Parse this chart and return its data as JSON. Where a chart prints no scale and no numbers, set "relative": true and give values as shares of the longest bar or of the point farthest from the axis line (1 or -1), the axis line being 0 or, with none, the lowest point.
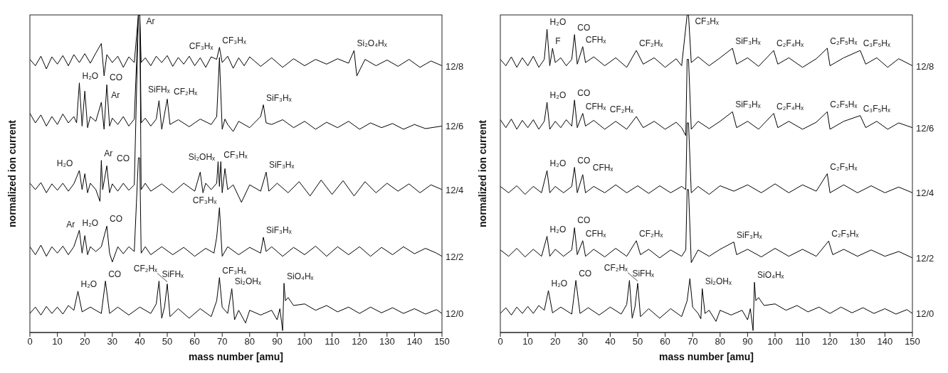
{
  "chart_data": [
    {
      "type": "line",
      "relative": true,
      "xlabel": "mass number [amu]",
      "ylabel": "normalized ion current",
      "xlim": [
        0,
        150
      ],
      "xticks": [
        0,
        10,
        20,
        30,
        40,
        50,
        60,
        70,
        80,
        90,
        100,
        110,
        120,
        130,
        140,
        150
      ],
      "series": [
        {
          "name": "12/8",
          "color": "#000000",
          "x": [
            0,
            2,
            4,
            6,
            8,
            10,
            12,
            14,
            16,
            18,
            20,
            22,
            24,
            26,
            27,
            28,
            30,
            32,
            34,
            36,
            38,
            39.5,
            40,
            40.5,
            42,
            44,
            46,
            48,
            50,
            52,
            54,
            56,
            58,
            60,
            62,
            64,
            66,
            68,
            69,
            70,
            72,
            74,
            76,
            78,
            80,
            84,
            88,
            92,
            96,
            100,
            104,
            108,
            112,
            116,
            118,
            119,
            122,
            126,
            130,
            134,
            138,
            142,
            146,
            150
          ],
          "values": [
            0.86,
            0.84,
            0.87,
            0.83,
            0.868,
            0.845,
            0.872,
            0.84,
            0.875,
            0.85,
            0.878,
            0.848,
            0.88,
            0.91,
            0.808,
            0.875,
            0.85,
            0.87,
            0.835,
            0.868,
            0.85,
            1.0,
            1.0,
            0.85,
            0.865,
            0.84,
            0.87,
            0.85,
            0.872,
            0.838,
            0.866,
            0.845,
            0.87,
            0.84,
            0.865,
            0.835,
            0.868,
            0.86,
            0.898,
            0.85,
            0.87,
            0.832,
            0.865,
            0.84,
            0.868,
            0.838,
            0.865,
            0.835,
            0.862,
            0.84,
            0.86,
            0.845,
            0.862,
            0.848,
            0.888,
            0.808,
            0.86,
            0.84,
            0.858,
            0.838,
            0.86,
            0.835,
            0.855,
            0.84
          ]
        },
        {
          "name": "12/6",
          "color": "#000000",
          "x": [
            0,
            2,
            4,
            6,
            8,
            10,
            12,
            14,
            16,
            17,
            18,
            19,
            20,
            21,
            22,
            24,
            26,
            27,
            28,
            29,
            30,
            32,
            34,
            36,
            38,
            39.5,
            40,
            40.5,
            42,
            44,
            46,
            47,
            48,
            50,
            51,
            54,
            58,
            62,
            66,
            68,
            69,
            70,
            71,
            72,
            74,
            76,
            80,
            84,
            85,
            86,
            88,
            92,
            96,
            100,
            104,
            108,
            112,
            116,
            120,
            124,
            128,
            132,
            136,
            140,
            144,
            150
          ],
          "values": [
            0.69,
            0.66,
            0.685,
            0.65,
            0.68,
            0.655,
            0.688,
            0.66,
            0.68,
            0.66,
            0.786,
            0.65,
            0.76,
            0.645,
            0.68,
            0.665,
            0.725,
            0.64,
            0.78,
            0.65,
            0.675,
            0.655,
            0.68,
            0.65,
            0.672,
            1.0,
            1.0,
            0.66,
            0.675,
            0.65,
            0.672,
            0.73,
            0.64,
            0.735,
            0.655,
            0.67,
            0.648,
            0.672,
            0.655,
            0.68,
            0.866,
            0.64,
            0.672,
            0.655,
            0.633,
            0.665,
            0.645,
            0.68,
            0.717,
            0.66,
            0.655,
            0.67,
            0.645,
            0.665,
            0.64,
            0.662,
            0.645,
            0.665,
            0.64,
            0.66,
            0.645,
            0.658,
            0.64,
            0.655,
            0.642,
            0.65
          ]
        },
        {
          "name": "12/4",
          "color": "#000000",
          "x": [
            0,
            2,
            4,
            6,
            8,
            10,
            12,
            14,
            16,
            18,
            19,
            20,
            21,
            22,
            24,
            25.5,
            26,
            26.5,
            28,
            29,
            30,
            32,
            34,
            36,
            38,
            39.5,
            40,
            40.5,
            42,
            44,
            48,
            52,
            56,
            60,
            62,
            63,
            64,
            66,
            68,
            68.5,
            69,
            69.5,
            70,
            71,
            72,
            74,
            77,
            80,
            84,
            86,
            87,
            90,
            94,
            98,
            102,
            106,
            110,
            114,
            118,
            122,
            126,
            130,
            134,
            138,
            142,
            146,
            150
          ],
          "values": [
            0.47,
            0.45,
            0.472,
            0.44,
            0.468,
            0.448,
            0.47,
            0.445,
            0.468,
            0.51,
            0.45,
            0.5,
            0.44,
            0.47,
            0.45,
            0.413,
            0.542,
            0.45,
            0.525,
            0.44,
            0.468,
            0.445,
            0.47,
            0.448,
            0.465,
            1.0,
            1.0,
            0.45,
            0.47,
            0.445,
            0.468,
            0.44,
            0.47,
            0.445,
            0.505,
            0.44,
            0.47,
            0.45,
            0.47,
            0.538,
            0.46,
            0.538,
            0.44,
            0.516,
            0.45,
            0.465,
            0.41,
            0.465,
            0.445,
            0.505,
            0.445,
            0.47,
            0.44,
            0.475,
            0.43,
            0.48,
            0.435,
            0.478,
            0.43,
            0.475,
            0.44,
            0.47,
            0.445,
            0.468,
            0.44,
            0.465,
            0.45
          ]
        },
        {
          "name": "12/2",
          "color": "#000000",
          "x": [
            0,
            2,
            4,
            6,
            8,
            10,
            12,
            14,
            16,
            18,
            19,
            20,
            21,
            22,
            24,
            26,
            28,
            29,
            30,
            32,
            34,
            36,
            38,
            39.5,
            40,
            40.5,
            42,
            44,
            48,
            52,
            56,
            60,
            64,
            67,
            68,
            69,
            70,
            72,
            76,
            80,
            84,
            85,
            86,
            88,
            92,
            96,
            100,
            104,
            108,
            112,
            116,
            120,
            124,
            128,
            132,
            136,
            140,
            144,
            148,
            150
          ],
          "values": [
            0.27,
            0.245,
            0.275,
            0.24,
            0.27,
            0.25,
            0.272,
            0.245,
            0.27,
            0.322,
            0.25,
            0.305,
            0.245,
            0.27,
            0.255,
            0.27,
            0.335,
            0.25,
            0.222,
            0.27,
            0.248,
            0.27,
            0.255,
            0.55,
            0.55,
            0.25,
            0.27,
            0.245,
            0.27,
            0.245,
            0.268,
            0.24,
            0.265,
            0.25,
            0.3,
            0.393,
            0.24,
            0.27,
            0.245,
            0.268,
            0.25,
            0.3,
            0.255,
            0.27,
            0.24,
            0.268,
            0.245,
            0.272,
            0.24,
            0.27,
            0.245,
            0.27,
            0.24,
            0.268,
            0.245,
            0.27,
            0.248,
            0.265,
            0.25,
            0.24
          ]
        },
        {
          "name": "12/0",
          "color": "#000000",
          "x": [
            0,
            2,
            4,
            6,
            8,
            10,
            12,
            14,
            16,
            17.5,
            19,
            22,
            26,
            27.5,
            29,
            32,
            36,
            40,
            44,
            46,
            47,
            48,
            49,
            50,
            51,
            54,
            58,
            62,
            66,
            68,
            69,
            70,
            72,
            73.5,
            74.5,
            76,
            78.5,
            80,
            84,
            88,
            90,
            91,
            92,
            92.5,
            93,
            94,
            96,
            100,
            104,
            108,
            112,
            116,
            120,
            124,
            128,
            132,
            136,
            140,
            144,
            148,
            150
          ],
          "values": [
            0.06,
            0.08,
            0.055,
            0.082,
            0.06,
            0.08,
            0.058,
            0.085,
            0.07,
            0.13,
            0.065,
            0.08,
            0.06,
            0.162,
            0.06,
            0.08,
            0.055,
            0.08,
            0.06,
            0.09,
            0.162,
            0.045,
            0.08,
            0.153,
            0.05,
            0.075,
            0.045,
            0.075,
            0.05,
            0.1,
            0.173,
            0.08,
            0.06,
            0.138,
            0.04,
            0.07,
            0.03,
            0.07,
            0.055,
            0.07,
            0.04,
            0.075,
            0.006,
            0.155,
            0.1,
            0.11,
            0.085,
            0.09,
            0.07,
            0.085,
            0.065,
            0.08,
            0.06,
            0.08,
            0.062,
            0.078,
            0.06,
            0.075,
            0.058,
            0.072,
            0.06
          ]
        }
      ],
      "annotations": [
        {
          "text": "Ar",
          "x": 40,
          "y": 1.0
        },
        {
          "text": "CF₃Hₓ",
          "x": 69,
          "y": 0.898
        },
        {
          "text": "Si₂O₄Hₓ",
          "x": 118,
          "y": 0.888
        },
        {
          "text": "H₂O",
          "x": 18,
          "y": 0.786
        },
        {
          "text": "Ar",
          "x": 26,
          "y": 0.725
        },
        {
          "text": "CO",
          "x": 28,
          "y": 0.78
        },
        {
          "text": "SiFHₓ",
          "x": 47,
          "y": 0.73
        },
        {
          "text": "CF₂Hₓ",
          "x": 50,
          "y": 0.735
        },
        {
          "text": "CF₃Hₓ",
          "x": 69,
          "y": 0.866
        },
        {
          "text": "SiF₃Hₓ",
          "x": 85,
          "y": 0.717
        },
        {
          "text": "H₂O",
          "x": 18,
          "y": 0.51
        },
        {
          "text": "Ar",
          "x": 26,
          "y": 0.542
        },
        {
          "text": "CO",
          "x": 28,
          "y": 0.525
        },
        {
          "text": "CF₃Hₓ",
          "x": 69.5,
          "y": 0.538
        },
        {
          "text": "Si₂OHₓ",
          "x": 71,
          "y": 0.516
        },
        {
          "text": "SiF₃Hₓ",
          "x": 86,
          "y": 0.505
        },
        {
          "text": "H₂O",
          "x": 18,
          "y": 0.322
        },
        {
          "text": "Ar",
          "x": 20,
          "y": 0.305
        },
        {
          "text": "CO",
          "x": 28,
          "y": 0.335
        },
        {
          "text": "CF₃Hₓ",
          "x": 69,
          "y": 0.393
        },
        {
          "text": "SiF₃Hₓ",
          "x": 85,
          "y": 0.3
        },
        {
          "text": "H₂O",
          "x": 17.5,
          "y": 0.13
        },
        {
          "text": "CO",
          "x": 27.5,
          "y": 0.162
        },
        {
          "text": "SiFHₓ",
          "x": 47,
          "y": 0.162
        },
        {
          "text": "CF₂Hₓ",
          "x": 50,
          "y": 0.153
        },
        {
          "text": "CF₃Hₓ",
          "x": 69,
          "y": 0.173
        },
        {
          "text": "Si₂OHₓ",
          "x": 73.5,
          "y": 0.138
        },
        {
          "text": "SiO₄Hₓ",
          "x": 92.5,
          "y": 0.155
        }
      ]
    },
    {
      "type": "line",
      "relative": true,
      "xlabel": "mass number [amu]",
      "ylabel": "normalized ion current",
      "xlim": [
        0,
        150
      ],
      "xticks": [
        0,
        10,
        20,
        30,
        40,
        50,
        60,
        70,
        80,
        90,
        100,
        110,
        120,
        130,
        140,
        150
      ],
      "series": [
        {
          "name": "12/8",
          "color": "#000000",
          "x": [
            0,
            2,
            4,
            6,
            8,
            10,
            12,
            14,
            16,
            17,
            18,
            19,
            20,
            22,
            24,
            26,
            27,
            28,
            30,
            31,
            34,
            38,
            42,
            46,
            49.5,
            52,
            56,
            60,
            64,
            66,
            67.5,
            68,
            68.5,
            69.5,
            72,
            76,
            80,
            84.5,
            86,
            90,
            94,
            99.5,
            101,
            105,
            110,
            115,
            119,
            120,
            125,
            131,
            133,
            137,
            141,
            145,
            150
          ],
          "values": [
            0.86,
            0.84,
            0.868,
            0.835,
            0.865,
            0.84,
            0.87,
            0.835,
            0.86,
            0.955,
            0.84,
            0.895,
            0.85,
            0.865,
            0.84,
            0.86,
            0.938,
            0.845,
            0.9,
            0.85,
            0.868,
            0.84,
            0.865,
            0.835,
            0.888,
            0.845,
            0.865,
            0.835,
            0.862,
            0.84,
            0.96,
            1.0,
            1.0,
            0.85,
            0.868,
            0.84,
            0.865,
            0.895,
            0.845,
            0.865,
            0.838,
            0.888,
            0.845,
            0.865,
            0.835,
            0.862,
            0.895,
            0.84,
            0.865,
            0.888,
            0.845,
            0.865,
            0.835,
            0.862,
            0.84
          ]
        },
        {
          "name": "12/6",
          "color": "#000000",
          "x": [
            0,
            2,
            4,
            6,
            8,
            10,
            12,
            14,
            16,
            17,
            18,
            20,
            22,
            24,
            26,
            27,
            28,
            30,
            31,
            34,
            38,
            42,
            46,
            49.5,
            52,
            56,
            60,
            64,
            66,
            67.5,
            68,
            68.5,
            69.5,
            72,
            76,
            80,
            84.5,
            86,
            90,
            94,
            99.5,
            101,
            105,
            110,
            115,
            119,
            120,
            125,
            131,
            133,
            137,
            141,
            145,
            150
          ],
          "values": [
            0.67,
            0.645,
            0.672,
            0.64,
            0.668,
            0.645,
            0.67,
            0.64,
            0.665,
            0.725,
            0.64,
            0.665,
            0.645,
            0.67,
            0.65,
            0.732,
            0.645,
            0.69,
            0.65,
            0.668,
            0.64,
            0.665,
            0.64,
            0.68,
            0.645,
            0.665,
            0.64,
            0.662,
            0.645,
            0.62,
            0.86,
            0.86,
            0.64,
            0.665,
            0.642,
            0.665,
            0.695,
            0.645,
            0.665,
            0.64,
            0.69,
            0.645,
            0.665,
            0.64,
            0.662,
            0.695,
            0.64,
            0.665,
            0.683,
            0.645,
            0.665,
            0.64,
            0.66,
            0.645
          ]
        },
        {
          "name": "12/4",
          "color": "#000000",
          "x": [
            0,
            3,
            6,
            9,
            12,
            15,
            17,
            18,
            20,
            23,
            26,
            27,
            28,
            30,
            31,
            34,
            38,
            42,
            46,
            50,
            54,
            58,
            62,
            66,
            67.5,
            68,
            68.5,
            69.5,
            72,
            76,
            80,
            85,
            90,
            95,
            100,
            105,
            110,
            115,
            119,
            120,
            125,
            130,
            135,
            140,
            145,
            150
          ],
          "values": [
            0.46,
            0.44,
            0.462,
            0.435,
            0.46,
            0.44,
            0.51,
            0.44,
            0.46,
            0.44,
            0.46,
            0.52,
            0.44,
            0.497,
            0.44,
            0.46,
            0.44,
            0.465,
            0.44,
            0.462,
            0.438,
            0.462,
            0.44,
            0.46,
            0.45,
            0.66,
            0.66,
            0.44,
            0.46,
            0.435,
            0.462,
            0.445,
            0.465,
            0.44,
            0.468,
            0.44,
            0.465,
            0.445,
            0.5,
            0.44,
            0.465,
            0.44,
            0.462,
            0.44,
            0.458,
            0.44
          ]
        },
        {
          "name": "12/2",
          "color": "#000000",
          "x": [
            0,
            3,
            6,
            9,
            12,
            15,
            17,
            18,
            20,
            23,
            26,
            27,
            28,
            30,
            31,
            34,
            38,
            42,
            46,
            49.5,
            51,
            54,
            58,
            62,
            66,
            67.5,
            68,
            68.5,
            69.5,
            72,
            76,
            80,
            85,
            86,
            90,
            95,
            100,
            105,
            110,
            115,
            119.5,
            121,
            125,
            130,
            135,
            140,
            145,
            150
          ],
          "values": [
            0.26,
            0.24,
            0.265,
            0.238,
            0.262,
            0.24,
            0.303,
            0.24,
            0.262,
            0.24,
            0.26,
            0.33,
            0.245,
            0.289,
            0.24,
            0.262,
            0.238,
            0.265,
            0.24,
            0.289,
            0.245,
            0.262,
            0.235,
            0.26,
            0.24,
            0.26,
            0.45,
            0.45,
            0.22,
            0.26,
            0.24,
            0.262,
            0.285,
            0.245,
            0.262,
            0.238,
            0.265,
            0.24,
            0.262,
            0.24,
            0.288,
            0.245,
            0.262,
            0.24,
            0.26,
            0.24,
            0.255,
            0.235
          ]
        },
        {
          "name": "12/0",
          "color": "#000000",
          "x": [
            0,
            2,
            4,
            6,
            8,
            10,
            12,
            14,
            16,
            17.5,
            19,
            22,
            26,
            27.5,
            29,
            32,
            36,
            40,
            44,
            46,
            47,
            48,
            49,
            50,
            51,
            54,
            58,
            62,
            66,
            68,
            69,
            70,
            72,
            73,
            73.5,
            74.5,
            76,
            78.5,
            80,
            84,
            88,
            90,
            91,
            92,
            92.5,
            93,
            94,
            96,
            100,
            104,
            108,
            112,
            116,
            120,
            124,
            128,
            132,
            136,
            140,
            144,
            148,
            150
          ],
          "values": [
            0.06,
            0.078,
            0.055,
            0.08,
            0.06,
            0.082,
            0.06,
            0.085,
            0.07,
            0.132,
            0.062,
            0.08,
            0.058,
            0.164,
            0.06,
            0.078,
            0.055,
            0.08,
            0.058,
            0.088,
            0.164,
            0.045,
            0.08,
            0.155,
            0.05,
            0.075,
            0.045,
            0.075,
            0.05,
            0.1,
            0.17,
            0.08,
            0.06,
            0.043,
            0.138,
            0.06,
            0.07,
            0.035,
            0.07,
            0.055,
            0.07,
            0.04,
            0.075,
            0.006,
            0.158,
            0.1,
            0.11,
            0.085,
            0.09,
            0.07,
            0.085,
            0.065,
            0.08,
            0.06,
            0.08,
            0.062,
            0.078,
            0.06,
            0.075,
            0.058,
            0.072,
            0.06
          ]
        }
      ],
      "annotations": [
        {
          "text": "H₂O",
          "x": 17,
          "y": 0.955
        },
        {
          "text": "F",
          "x": 19,
          "y": 0.895
        },
        {
          "text": "CO",
          "x": 27,
          "y": 0.938
        },
        {
          "text": "CFHₓ",
          "x": 30,
          "y": 0.9
        },
        {
          "text": "CF₂Hₓ",
          "x": 49.5,
          "y": 0.888
        },
        {
          "text": "CF₃Hₓ",
          "x": 68.5,
          "y": 1.0
        },
        {
          "text": "SiF₃Hₓ",
          "x": 84.5,
          "y": 0.895
        },
        {
          "text": "C₂F₄Hₓ",
          "x": 99.5,
          "y": 0.888
        },
        {
          "text": "C₂F₅Hₓ",
          "x": 119,
          "y": 0.895
        },
        {
          "text": "C₃F₅Hₓ",
          "x": 131,
          "y": 0.888
        },
        {
          "text": "H₂O",
          "x": 17,
          "y": 0.725
        },
        {
          "text": "CO",
          "x": 27,
          "y": 0.732
        },
        {
          "text": "CFHₓ",
          "x": 30,
          "y": 0.69
        },
        {
          "text": "CF₂Hₓ",
          "x": 49.5,
          "y": 0.68
        },
        {
          "text": "SiF₃Hₓ",
          "x": 84.5,
          "y": 0.695
        },
        {
          "text": "C₂F₄Hₓ",
          "x": 99.5,
          "y": 0.69
        },
        {
          "text": "C₂F₅Hₓ",
          "x": 119,
          "y": 0.695
        },
        {
          "text": "C₃F₅Hₓ",
          "x": 131,
          "y": 0.683
        },
        {
          "text": "H₂O",
          "x": 17,
          "y": 0.51
        },
        {
          "text": "CO",
          "x": 27,
          "y": 0.52
        },
        {
          "text": "CFHₓ",
          "x": 30,
          "y": 0.497
        },
        {
          "text": "C₂F₅Hₓ",
          "x": 119,
          "y": 0.5
        },
        {
          "text": "H₂O",
          "x": 17,
          "y": 0.303
        },
        {
          "text": "CO",
          "x": 27,
          "y": 0.33
        },
        {
          "text": "CFHₓ",
          "x": 30,
          "y": 0.289
        },
        {
          "text": "CF₂Hₓ",
          "x": 49.5,
          "y": 0.289
        },
        {
          "text": "SiF₃Hₓ",
          "x": 85,
          "y": 0.285
        },
        {
          "text": "C₂F₅Hₓ",
          "x": 119.5,
          "y": 0.288
        },
        {
          "text": "H₂O",
          "x": 17.5,
          "y": 0.132
        },
        {
          "text": "CO",
          "x": 27.5,
          "y": 0.164
        },
        {
          "text": "SiFHₓ",
          "x": 47,
          "y": 0.164
        },
        {
          "text": "CF₂Hₓ",
          "x": 50,
          "y": 0.155
        },
        {
          "text": "Si₂OHₓ",
          "x": 73.5,
          "y": 0.138
        },
        {
          "text": "SiO₄Hₓ",
          "x": 92.5,
          "y": 0.158
        }
      ]
    }
  ]
}
